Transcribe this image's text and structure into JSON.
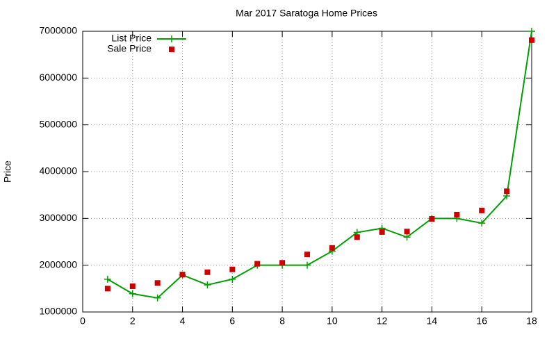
{
  "chart_data": {
    "type": "line",
    "title": "Mar 2017 Saratoga Home Prices",
    "ylabel": "Price",
    "x": [
      1,
      2,
      3,
      4,
      5,
      6,
      7,
      8,
      9,
      10,
      11,
      12,
      13,
      14,
      15,
      16,
      17,
      18
    ],
    "series": [
      {
        "name": "List Price",
        "color": "#009e00",
        "style": "linespoints",
        "values": [
          1700000,
          1390000,
          1300000,
          1790000,
          1580000,
          1700000,
          2000000,
          2000000,
          2000000,
          2300000,
          2700000,
          2790000,
          2600000,
          3000000,
          3000000,
          2900000,
          3480000,
          7000000
        ]
      },
      {
        "name": "Sale Price",
        "color": "#cc0000",
        "style": "points",
        "values": [
          1500000,
          1550000,
          1620000,
          1800000,
          1850000,
          1910000,
          2030000,
          2050000,
          2230000,
          2370000,
          2600000,
          2710000,
          2720000,
          2990000,
          3080000,
          3170000,
          3580000,
          6810000
        ]
      }
    ],
    "xlim": [
      0,
      18
    ],
    "xticks": [
      0,
      2,
      4,
      6,
      8,
      10,
      12,
      14,
      16,
      18
    ],
    "ylim": [
      1000000,
      7000000
    ],
    "yticks": [
      1000000,
      2000000,
      3000000,
      4000000,
      5000000,
      6000000,
      7000000
    ],
    "grid": true,
    "legend": "top-left"
  }
}
